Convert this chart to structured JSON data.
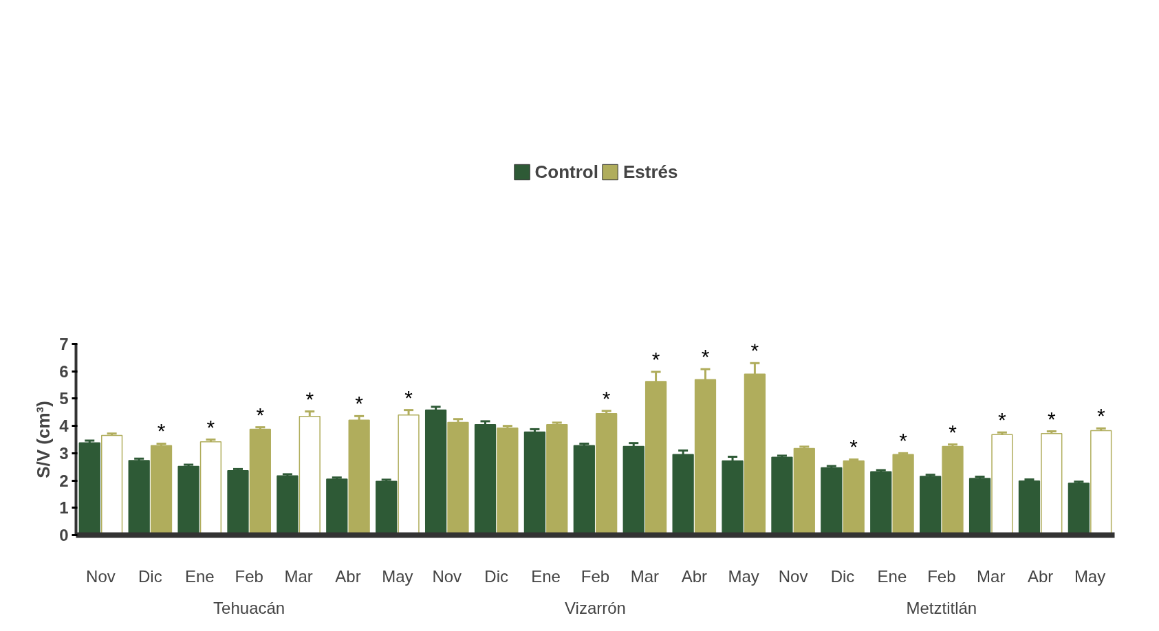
{
  "chart_data": {
    "type": "bar",
    "ylabel": "S/V (cm³)",
    "categories": [
      "Nov",
      "Dic",
      "Ene",
      "Feb",
      "Mar",
      "Abr",
      "May",
      "Nov",
      "Dic",
      "Ene",
      "Feb",
      "Mar",
      "Abr",
      "May",
      "Nov",
      "Dic",
      "Ene",
      "Feb",
      "Mar",
      "Abr",
      "May"
    ],
    "series": [
      {
        "name": "Control",
        "color": "#2e5a36",
        "values": [
          3.38,
          2.73,
          2.52,
          2.36,
          2.17,
          2.05,
          1.97,
          4.58,
          4.05,
          3.78,
          3.28,
          3.25,
          2.95,
          2.72,
          2.85,
          2.47,
          2.32,
          2.15,
          2.08,
          1.98,
          1.9
        ],
        "errors": [
          0.08,
          0.07,
          0.06,
          0.06,
          0.06,
          0.06,
          0.06,
          0.12,
          0.12,
          0.1,
          0.07,
          0.12,
          0.15,
          0.15,
          0.06,
          0.06,
          0.06,
          0.06,
          0.06,
          0.06,
          0.06
        ]
      },
      {
        "name": "Estrés",
        "color": "#b0ad5c",
        "colors": [
          "#ffffff",
          "#b0ad5c",
          "#ffffff",
          "#b0ad5c",
          "#ffffff",
          "#b0ad5c",
          "#ffffff",
          "#b0ad5c",
          "#b0ad5c",
          "#b0ad5c",
          "#b0ad5c",
          "#b0ad5c",
          "#b0ad5c",
          "#b0ad5c",
          "#b0ad5c",
          "#b0ad5c",
          "#b0ad5c",
          "#b0ad5c",
          "#ffffff",
          "#ffffff",
          "#ffffff"
        ],
        "values": [
          3.65,
          3.28,
          3.42,
          3.88,
          4.35,
          4.21,
          4.4,
          4.13,
          3.92,
          4.05,
          4.45,
          5.63,
          5.7,
          5.9,
          3.17,
          2.72,
          2.95,
          3.25,
          3.68,
          3.72,
          3.83
        ],
        "errors": [
          0.07,
          0.07,
          0.08,
          0.07,
          0.18,
          0.15,
          0.18,
          0.12,
          0.08,
          0.07,
          0.1,
          0.35,
          0.38,
          0.4,
          0.07,
          0.05,
          0.05,
          0.07,
          0.08,
          0.08,
          0.08
        ],
        "value_labels": [
          null,
          "*",
          "*",
          "*",
          "*",
          "*",
          "*",
          null,
          null,
          null,
          "*",
          "*",
          "*",
          "*",
          null,
          "*",
          "*",
          "*",
          "*",
          "*",
          "*"
        ]
      }
    ],
    "ylim": [
      0,
      7
    ],
    "yticks": [
      0,
      1,
      2,
      3,
      4,
      5,
      6,
      7
    ],
    "grid": false,
    "legend": "top",
    "annotations": [
      "Tehuacán",
      "Vizarrón",
      "Metztitlán"
    ]
  }
}
